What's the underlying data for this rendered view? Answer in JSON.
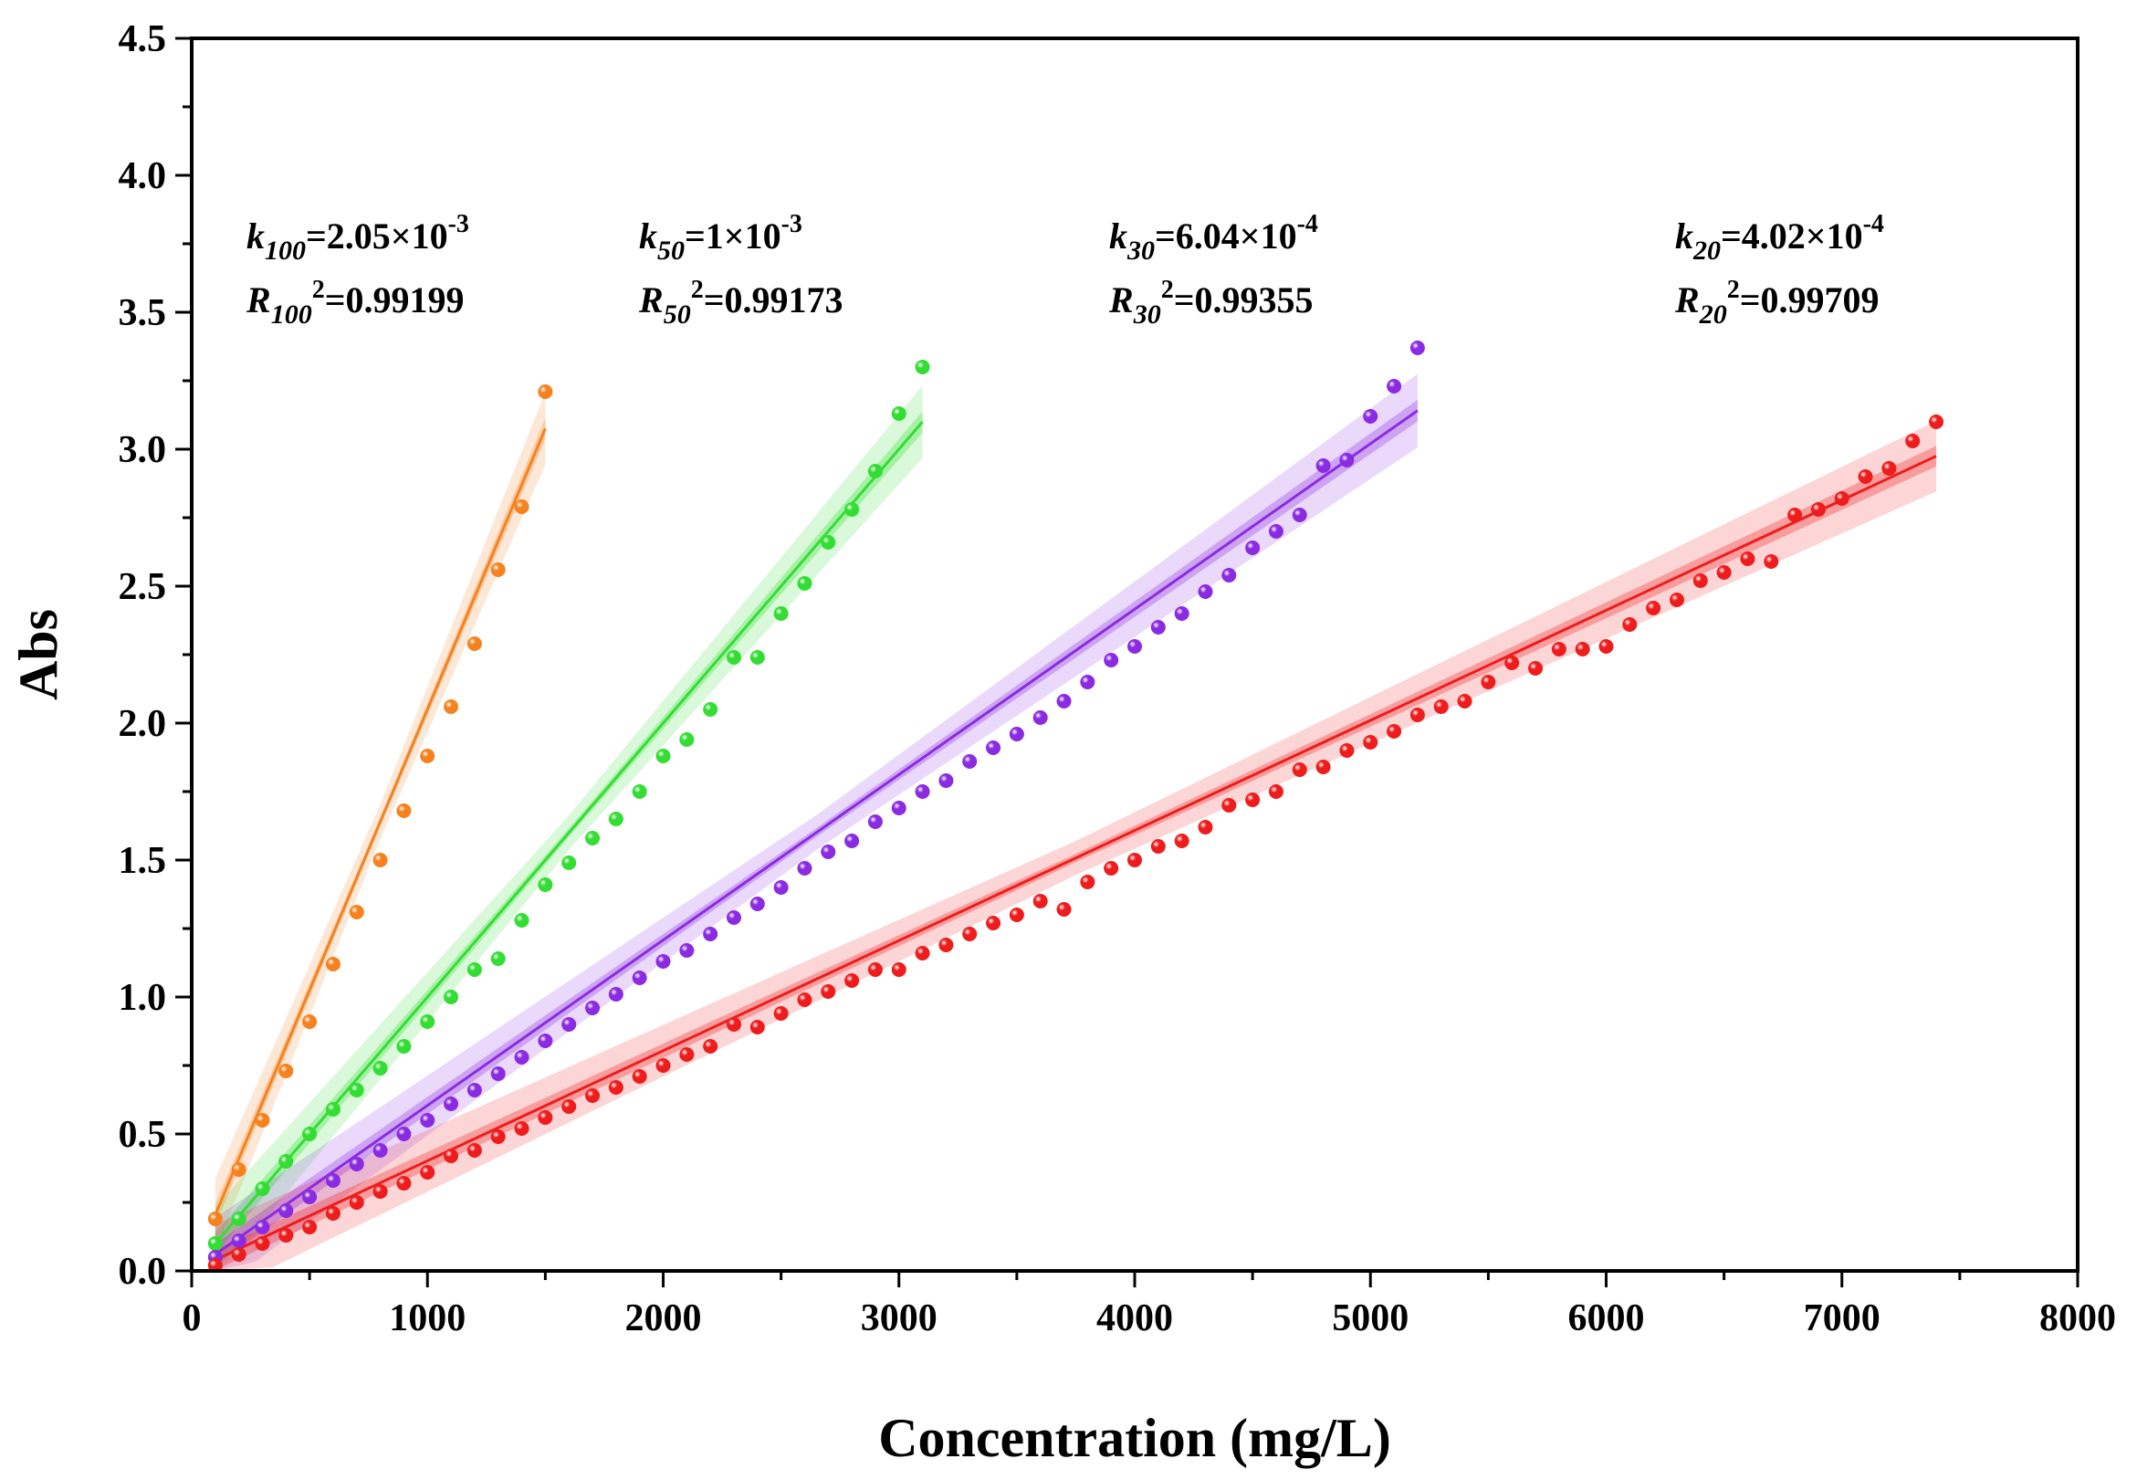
{
  "chart_data": {
    "type": "scatter",
    "xlabel": "Concentration (mg/L)",
    "ylabel": "Abs",
    "xlim": [
      0,
      8000
    ],
    "ylim": [
      0,
      4.5
    ],
    "xticks": [
      "0",
      "1000",
      "2000",
      "3000",
      "4000",
      "5000",
      "6000",
      "7000",
      "8000"
    ],
    "yticks": [
      "0.0",
      "0.5",
      "1.0",
      "1.5",
      "2.0",
      "2.5",
      "3.0",
      "3.5",
      "4.0",
      "4.5"
    ],
    "grid": false,
    "legend": "none",
    "series": [
      {
        "color": "#f5821f",
        "fit": {
          "slope": 0.00205,
          "x_start": 100,
          "x_end": 1500
        },
        "label": {
          "k_sub": "100",
          "k_value": "=2.05×10",
          "k_exp": "-3",
          "r_sub": "100",
          "r_value": "=0.99199"
        },
        "points": [
          [
            100,
            0.19
          ],
          [
            200,
            0.37
          ],
          [
            300,
            0.55
          ],
          [
            400,
            0.73
          ],
          [
            500,
            0.91
          ],
          [
            600,
            1.12
          ],
          [
            700,
            1.31
          ],
          [
            800,
            1.5
          ],
          [
            900,
            1.68
          ],
          [
            1000,
            1.88
          ],
          [
            1100,
            2.06
          ],
          [
            1200,
            2.29
          ],
          [
            1300,
            2.56
          ],
          [
            1400,
            2.79
          ],
          [
            1500,
            3.21
          ]
        ]
      },
      {
        "color": "#33dd33",
        "fit": {
          "slope": 0.001,
          "x_start": 100,
          "x_end": 3100
        },
        "label": {
          "k_sub": "50",
          "k_value": "=1×10",
          "k_exp": "-3",
          "r_sub": "50",
          "r_value": "=0.99173"
        },
        "points": [
          [
            100,
            0.1
          ],
          [
            200,
            0.19
          ],
          [
            300,
            0.3
          ],
          [
            400,
            0.4
          ],
          [
            500,
            0.5
          ],
          [
            600,
            0.59
          ],
          [
            700,
            0.66
          ],
          [
            800,
            0.74
          ],
          [
            900,
            0.82
          ],
          [
            1000,
            0.91
          ],
          [
            1100,
            1.0
          ],
          [
            1200,
            1.1
          ],
          [
            1300,
            1.14
          ],
          [
            1400,
            1.28
          ],
          [
            1500,
            1.41
          ],
          [
            1600,
            1.49
          ],
          [
            1700,
            1.58
          ],
          [
            1800,
            1.65
          ],
          [
            1900,
            1.75
          ],
          [
            2000,
            1.88
          ],
          [
            2100,
            1.94
          ],
          [
            2200,
            2.05
          ],
          [
            2300,
            2.24
          ],
          [
            2400,
            2.24
          ],
          [
            2500,
            2.4
          ],
          [
            2600,
            2.51
          ],
          [
            2700,
            2.66
          ],
          [
            2800,
            2.78
          ],
          [
            2900,
            2.92
          ],
          [
            3000,
            3.13
          ],
          [
            3100,
            3.3
          ]
        ]
      },
      {
        "color": "#8a2be2",
        "fit": {
          "slope": 0.000604,
          "x_start": 100,
          "x_end": 5200
        },
        "label": {
          "k_sub": "30",
          "k_value": "=6.04×10",
          "k_exp": "-4",
          "r_sub": "30",
          "r_value": "=0.99355"
        },
        "points": [
          [
            100,
            0.05
          ],
          [
            200,
            0.11
          ],
          [
            300,
            0.16
          ],
          [
            400,
            0.22
          ],
          [
            500,
            0.27
          ],
          [
            600,
            0.33
          ],
          [
            700,
            0.39
          ],
          [
            800,
            0.44
          ],
          [
            900,
            0.5
          ],
          [
            1000,
            0.55
          ],
          [
            1100,
            0.61
          ],
          [
            1200,
            0.66
          ],
          [
            1300,
            0.72
          ],
          [
            1400,
            0.78
          ],
          [
            1500,
            0.84
          ],
          [
            1600,
            0.9
          ],
          [
            1700,
            0.96
          ],
          [
            1800,
            1.01
          ],
          [
            1900,
            1.07
          ],
          [
            2000,
            1.13
          ],
          [
            2100,
            1.17
          ],
          [
            2200,
            1.23
          ],
          [
            2300,
            1.29
          ],
          [
            2400,
            1.34
          ],
          [
            2500,
            1.4
          ],
          [
            2600,
            1.47
          ],
          [
            2700,
            1.53
          ],
          [
            2800,
            1.57
          ],
          [
            2900,
            1.64
          ],
          [
            3000,
            1.69
          ],
          [
            3100,
            1.75
          ],
          [
            3200,
            1.79
          ],
          [
            3300,
            1.86
          ],
          [
            3400,
            1.91
          ],
          [
            3500,
            1.96
          ],
          [
            3600,
            2.02
          ],
          [
            3700,
            2.08
          ],
          [
            3800,
            2.15
          ],
          [
            3900,
            2.23
          ],
          [
            4000,
            2.28
          ],
          [
            4100,
            2.35
          ],
          [
            4200,
            2.4
          ],
          [
            4300,
            2.48
          ],
          [
            4400,
            2.54
          ],
          [
            4500,
            2.64
          ],
          [
            4600,
            2.7
          ],
          [
            4700,
            2.76
          ],
          [
            4800,
            2.94
          ],
          [
            4900,
            2.96
          ],
          [
            5000,
            3.12
          ],
          [
            5100,
            3.23
          ],
          [
            5200,
            3.37
          ]
        ]
      },
      {
        "color": "#ee1c1c",
        "fit": {
          "slope": 0.000402,
          "x_start": 100,
          "x_end": 7400
        },
        "label": {
          "k_sub": "20",
          "k_value": "=4.02×10",
          "k_exp": "-4",
          "r_sub": "20",
          "r_value": "=0.99709"
        },
        "points": [
          [
            100,
            0.02
          ],
          [
            200,
            0.06
          ],
          [
            300,
            0.1
          ],
          [
            400,
            0.13
          ],
          [
            500,
            0.16
          ],
          [
            600,
            0.21
          ],
          [
            700,
            0.25
          ],
          [
            800,
            0.29
          ],
          [
            900,
            0.32
          ],
          [
            1000,
            0.36
          ],
          [
            1100,
            0.42
          ],
          [
            1200,
            0.44
          ],
          [
            1300,
            0.49
          ],
          [
            1400,
            0.52
          ],
          [
            1500,
            0.56
          ],
          [
            1600,
            0.6
          ],
          [
            1700,
            0.64
          ],
          [
            1800,
            0.67
          ],
          [
            1900,
            0.71
          ],
          [
            2000,
            0.75
          ],
          [
            2100,
            0.79
          ],
          [
            2200,
            0.82
          ],
          [
            2300,
            0.9
          ],
          [
            2400,
            0.89
          ],
          [
            2500,
            0.94
          ],
          [
            2600,
            0.99
          ],
          [
            2700,
            1.02
          ],
          [
            2800,
            1.06
          ],
          [
            2900,
            1.1
          ],
          [
            3000,
            1.1
          ],
          [
            3100,
            1.16
          ],
          [
            3200,
            1.19
          ],
          [
            3300,
            1.23
          ],
          [
            3400,
            1.27
          ],
          [
            3500,
            1.3
          ],
          [
            3600,
            1.35
          ],
          [
            3700,
            1.32
          ],
          [
            3800,
            1.42
          ],
          [
            3900,
            1.47
          ],
          [
            4000,
            1.5
          ],
          [
            4100,
            1.55
          ],
          [
            4200,
            1.57
          ],
          [
            4300,
            1.62
          ],
          [
            4400,
            1.7
          ],
          [
            4500,
            1.72
          ],
          [
            4600,
            1.75
          ],
          [
            4700,
            1.83
          ],
          [
            4800,
            1.84
          ],
          [
            4900,
            1.9
          ],
          [
            5000,
            1.93
          ],
          [
            5100,
            1.97
          ],
          [
            5200,
            2.03
          ],
          [
            5300,
            2.06
          ],
          [
            5400,
            2.08
          ],
          [
            5500,
            2.15
          ],
          [
            5600,
            2.22
          ],
          [
            5700,
            2.2
          ],
          [
            5800,
            2.27
          ],
          [
            5900,
            2.27
          ],
          [
            6000,
            2.28
          ],
          [
            6100,
            2.36
          ],
          [
            6200,
            2.42
          ],
          [
            6300,
            2.45
          ],
          [
            6400,
            2.52
          ],
          [
            6500,
            2.55
          ],
          [
            6600,
            2.6
          ],
          [
            6700,
            2.59
          ],
          [
            6800,
            2.76
          ],
          [
            6900,
            2.78
          ],
          [
            7000,
            2.82
          ],
          [
            7100,
            2.9
          ],
          [
            7200,
            2.93
          ],
          [
            7300,
            3.03
          ],
          [
            7400,
            3.1
          ]
        ]
      }
    ]
  }
}
